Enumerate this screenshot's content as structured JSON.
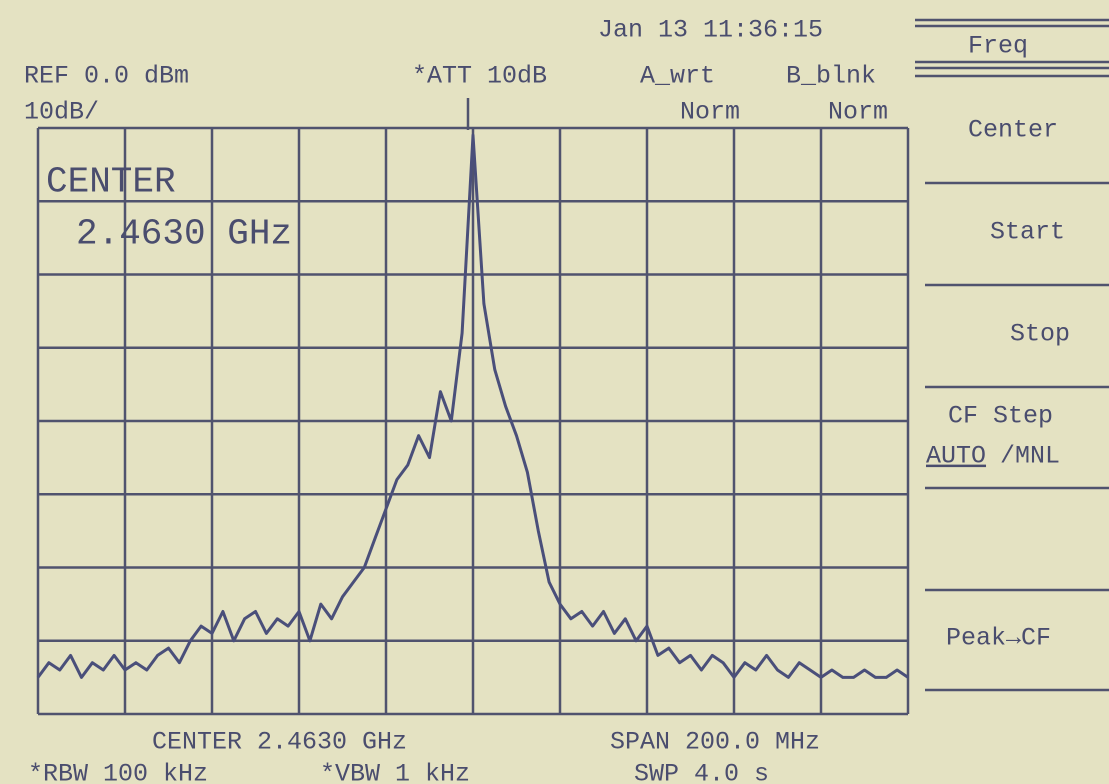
{
  "header": {
    "datetime": "Jan 13 11:36:15",
    "ref": "REF 0.0 dBm",
    "scale": "10dB/",
    "att": "*ATT 10dB",
    "trace_a": "A_wrt",
    "trace_b": "B_blnk",
    "detector_a": "Norm",
    "detector_b": "Norm"
  },
  "overlay": {
    "label": "CENTER",
    "value": "2.4630 GHz"
  },
  "footer": {
    "center": "CENTER 2.4630 GHz",
    "span": "SPAN 200.0 MHz",
    "rbw": "*RBW 100 kHz",
    "vbw": "*VBW 1 kHz",
    "sweep": "SWP 4.0 s"
  },
  "menu": {
    "title": "Freq",
    "items": [
      "Center",
      "Start",
      "Stop"
    ],
    "cf_step": {
      "label": "CF Step",
      "auto": "AUTO",
      "manual": "/MNL"
    },
    "peak": "Peak→CF"
  },
  "trace": {
    "color": "#4a4f7a",
    "ylim": [
      -80,
      0
    ],
    "values": [
      -75,
      -73,
      -74,
      -72,
      -75,
      -73,
      -74,
      -72,
      -74,
      -73,
      -74,
      -72,
      -71,
      -73,
      -70,
      -68,
      -69,
      -66,
      -70,
      -67,
      -66,
      -69,
      -67,
      -68,
      -66,
      -70,
      -65,
      -67,
      -64,
      -62,
      -60,
      -56,
      -52,
      -48,
      -46,
      -42,
      -45,
      -36,
      -40,
      -28,
      -1,
      -24,
      -33,
      -38,
      -42,
      -47,
      -55,
      -62,
      -65,
      -67,
      -66,
      -68,
      -66,
      -69,
      -67,
      -70,
      -68,
      -72,
      -71,
      -73,
      -72,
      -74,
      -72,
      -73,
      -75,
      -73,
      -74,
      -72,
      -74,
      -75,
      -73,
      -74,
      -75,
      -74,
      -75,
      -75,
      -74,
      -75,
      -75,
      -74,
      -75
    ]
  }
}
